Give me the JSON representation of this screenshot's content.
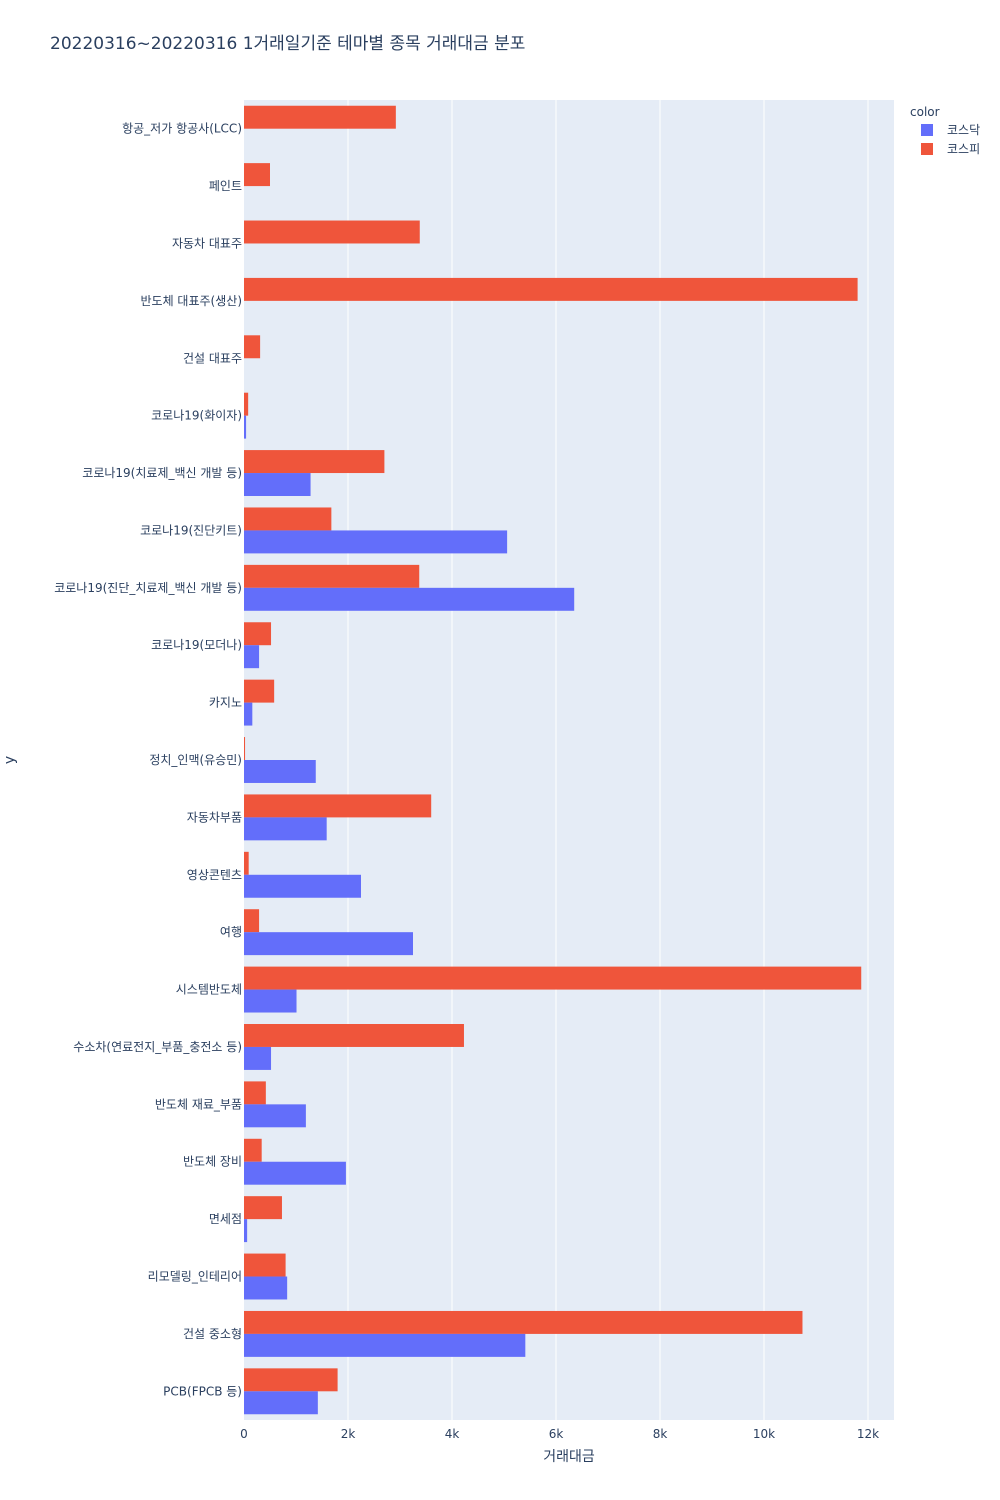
{
  "chart_data": {
    "type": "bar",
    "orientation": "horizontal",
    "title": "20220316~20220316 1거래일기준 테마별 종목 거래대금 분포",
    "xlabel": "거래대금",
    "ylabel": "y",
    "xlim": [
      0,
      12500
    ],
    "x_ticks": [
      0,
      2000,
      4000,
      6000,
      8000,
      10000,
      12000
    ],
    "x_tick_labels": [
      "0",
      "2k",
      "4k",
      "6k",
      "8k",
      "10k",
      "12k"
    ],
    "legend_title": "color",
    "categories": [
      "항공_저가 항공사(LCC)",
      "페인트",
      "자동차 대표주",
      "반도체 대표주(생산)",
      "건설 대표주",
      "코로나19(화이자)",
      "코로나19(치료제_백신 개발 등)",
      "코로나19(진단키트)",
      "코로나19(진단_치료제_백신 개발 등)",
      "코로나19(모더나)",
      "카지노",
      "정치_인맥(유승민)",
      "자동차부품",
      "영상콘텐츠",
      "여행",
      "시스템반도체",
      "수소차(연료전지_부품_충전소 등)",
      "반도체 재료_부품",
      "반도체 장비",
      "면세점",
      "리모델링_인테리어",
      "건설 중소형",
      "PCB(FPCB 등)"
    ],
    "series": [
      {
        "name": "코스닥",
        "color": "#636efa",
        "values": [
          0,
          0,
          0,
          0,
          0,
          40,
          1280,
          5060,
          6350,
          290,
          160,
          1380,
          1590,
          2250,
          3250,
          1010,
          520,
          1190,
          1960,
          60,
          830,
          5410,
          1420
        ]
      },
      {
        "name": "코스피",
        "color": "#ef553b",
        "values": [
          2920,
          500,
          3380,
          11800,
          310,
          80,
          2700,
          1680,
          3370,
          520,
          580,
          20,
          3600,
          90,
          290,
          11870,
          4230,
          420,
          340,
          730,
          800,
          10740,
          1800
        ]
      }
    ]
  }
}
